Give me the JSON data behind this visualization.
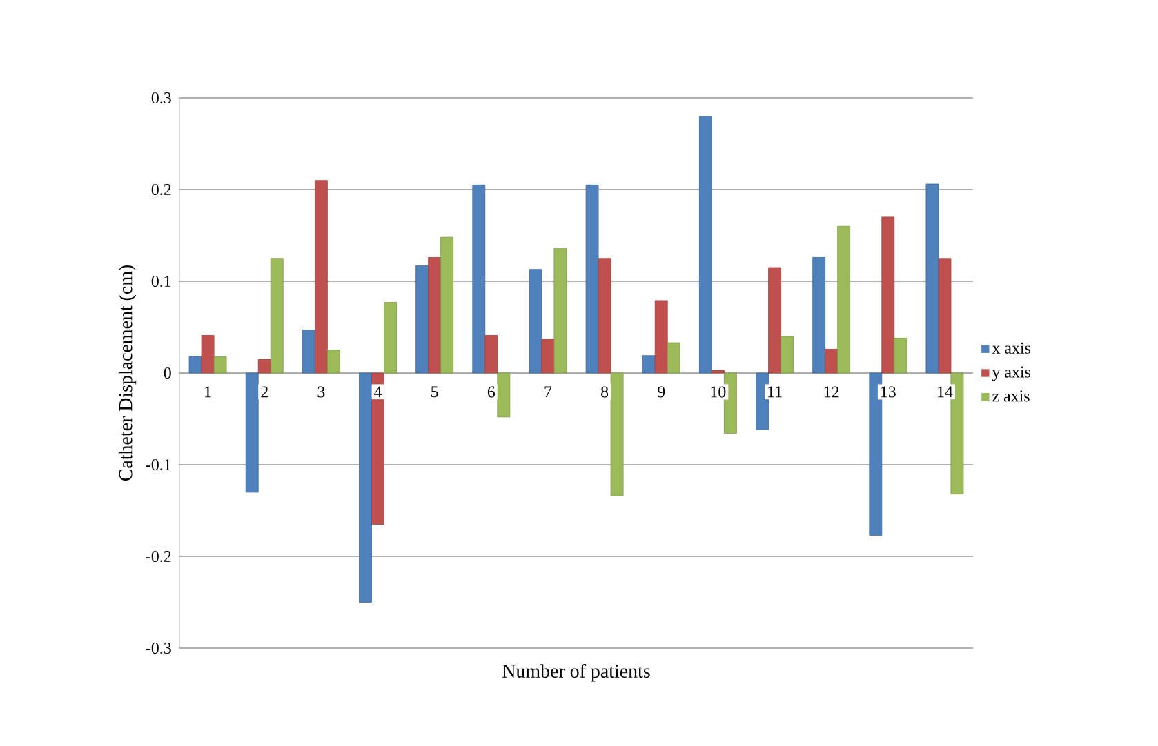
{
  "chart_data": {
    "type": "bar",
    "xlabel": "Number of patients",
    "ylabel": "Catheter Displacement (cm)",
    "categories": [
      "1",
      "2",
      "3",
      "4",
      "5",
      "6",
      "7",
      "8",
      "9",
      "10",
      "11",
      "12",
      "13",
      "14"
    ],
    "series": [
      {
        "name": "x axis",
        "color": "#4f81bd",
        "values": [
          0.018,
          -0.13,
          0.047,
          -0.25,
          0.117,
          0.205,
          0.113,
          0.205,
          0.019,
          0.28,
          -0.062,
          0.126,
          -0.177,
          0.206
        ]
      },
      {
        "name": "y axis",
        "color": "#c0504d",
        "values": [
          0.041,
          0.015,
          0.21,
          -0.165,
          0.126,
          0.041,
          0.037,
          0.125,
          0.079,
          0.003,
          0.115,
          0.026,
          0.17,
          0.125
        ]
      },
      {
        "name": "z axis",
        "color": "#9bbb59",
        "values": [
          0.018,
          0.125,
          0.025,
          0.077,
          0.148,
          -0.048,
          0.136,
          -0.134,
          0.033,
          -0.066,
          0.04,
          0.16,
          0.038,
          -0.132
        ]
      }
    ],
    "ylim": [
      -0.3,
      0.3
    ],
    "yticks": [
      -0.3,
      -0.2,
      -0.1,
      0,
      0.1,
      0.2,
      0.3
    ],
    "grid": "y",
    "legend": "right"
  }
}
